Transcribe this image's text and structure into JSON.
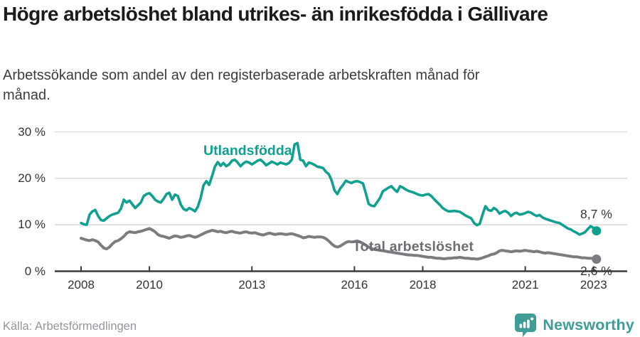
{
  "title": "Högre arbetslöshet bland utrikes- än inrikesfödda i Gällivare",
  "subtitle": "Arbetssökande som andel av den registerbaserade arbetskraften månad för månad.",
  "source": "Källa: Arbetsförmedlingen",
  "logo": {
    "text": "Newsworthy",
    "icon": "bar-chart-speech-bubble-icon",
    "color": "#3f9c96"
  },
  "colors": {
    "utlandsfodda": "#10a090",
    "total_line": "#7b7b80",
    "total_label": "#6d6d72",
    "grid": "#dcdcdc",
    "axis": "#3c3c3c",
    "text": "#333333",
    "source_text": "#95959b"
  },
  "chart_data": {
    "type": "line",
    "unit": "%",
    "frequency": "monthly",
    "x_start": "2008-01",
    "x_end": "2023-02",
    "ylim": [
      0,
      30
    ],
    "grid": "horizontal-only",
    "yticks": [
      {
        "value": 0,
        "label": "0 %"
      },
      {
        "value": 10,
        "label": "10 %"
      },
      {
        "value": 20,
        "label": "20 %"
      },
      {
        "value": 30,
        "label": "30 %"
      }
    ],
    "xticks": [
      {
        "year": 2008,
        "label": "2008"
      },
      {
        "year": 2010,
        "label": "2010"
      },
      {
        "year": 2013,
        "label": "2013"
      },
      {
        "year": 2016,
        "label": "2016"
      },
      {
        "year": 2018,
        "label": "2018"
      },
      {
        "year": 2021,
        "label": "2021"
      },
      {
        "year": 2023,
        "label": "2023"
      }
    ],
    "series": [
      {
        "name": "Utlandsfödda",
        "color": "#10a090",
        "end_label": "8,7 %",
        "end_value": 8.7,
        "values": [
          10.4,
          10.1,
          10.0,
          12.2,
          12.9,
          13.2,
          11.9,
          11.0,
          10.9,
          11.4,
          11.9,
          12.2,
          12.4,
          12.6,
          13.5,
          15.4,
          14.8,
          15.2,
          14.4,
          13.6,
          14.2,
          14.8,
          16.2,
          16.6,
          16.8,
          16.2,
          15.4,
          15.0,
          14.8,
          15.6,
          16.6,
          16.9,
          15.4,
          16.5,
          16.2,
          14.4,
          13.4,
          13.1,
          13.6,
          13.3,
          12.9,
          13.9,
          15.8,
          18.5,
          19.4,
          18.6,
          20.5,
          22.5,
          23.5,
          22.7,
          23.3,
          22.6,
          23.0,
          23.8,
          24.0,
          23.4,
          22.6,
          23.2,
          23.6,
          23.4,
          23.0,
          23.4,
          23.8,
          24.0,
          23.5,
          22.8,
          23.2,
          23.6,
          23.3,
          23.0,
          23.4,
          23.2,
          23.0,
          23.3,
          24.0,
          27.3,
          27.6,
          24.0,
          23.8,
          22.6,
          23.4,
          23.2,
          22.9,
          22.5,
          22.4,
          22.2,
          21.4,
          20.9,
          19.5,
          17.4,
          16.6,
          17.8,
          18.6,
          19.5,
          19.2,
          19.0,
          19.3,
          19.4,
          19.2,
          18.9,
          16.8,
          14.5,
          14.1,
          14.0,
          14.9,
          15.8,
          17.2,
          17.6,
          18.0,
          18.3,
          17.6,
          17.1,
          18.3,
          18.0,
          17.6,
          17.3,
          17.1,
          16.9,
          16.6,
          16.4,
          16.3,
          16.5,
          16.6,
          16.2,
          15.5,
          14.9,
          14.3,
          13.6,
          13.2,
          12.9,
          12.9,
          13.0,
          12.9,
          12.8,
          12.4,
          12.0,
          11.7,
          11.4,
          10.4,
          9.9,
          10.2,
          12.2,
          14.0,
          13.2,
          13.0,
          13.6,
          13.2,
          12.4,
          12.8,
          13.0,
          12.6,
          11.9,
          12.4,
          12.6,
          12.2,
          12.3,
          12.5,
          12.8,
          12.6,
          12.2,
          11.9,
          12.1,
          11.6,
          11.3,
          11.1,
          10.9,
          10.7,
          10.5,
          10.4,
          10.0,
          9.6,
          9.2,
          9.0,
          8.6,
          8.3,
          7.9,
          8.1,
          8.4,
          9.1,
          9.7,
          9.3,
          8.7
        ]
      },
      {
        "name": "Total arbetslöshet",
        "color": "#7b7b80",
        "end_label": "2,6 %",
        "end_value": 2.6,
        "values": [
          7.1,
          6.9,
          6.7,
          6.6,
          6.8,
          6.6,
          6.3,
          5.6,
          5.0,
          4.8,
          5.2,
          5.9,
          6.4,
          6.6,
          7.0,
          7.5,
          8.2,
          8.5,
          8.4,
          8.3,
          8.5,
          8.6,
          8.8,
          9.0,
          9.2,
          8.9,
          8.5,
          7.9,
          7.6,
          7.5,
          7.3,
          7.1,
          7.4,
          7.6,
          7.5,
          7.3,
          7.4,
          7.6,
          7.7,
          7.5,
          7.3,
          7.5,
          7.8,
          8.1,
          8.4,
          8.6,
          8.8,
          8.7,
          8.5,
          8.6,
          8.4,
          8.3,
          8.5,
          8.6,
          8.4,
          8.3,
          8.2,
          8.4,
          8.5,
          8.3,
          8.2,
          8.3,
          8.1,
          7.9,
          7.8,
          8.0,
          8.2,
          8.1,
          7.9,
          8.0,
          8.1,
          8.0,
          7.9,
          8.0,
          8.1,
          7.9,
          7.7,
          7.5,
          7.2,
          7.3,
          7.5,
          7.4,
          7.3,
          7.4,
          7.4,
          7.3,
          7.0,
          6.5,
          5.9,
          5.4,
          5.2,
          5.4,
          5.8,
          6.2,
          6.4,
          6.3,
          6.4,
          6.5,
          6.3,
          6.0,
          5.6,
          5.2,
          4.9,
          4.7,
          4.6,
          4.5,
          4.4,
          4.3,
          4.2,
          4.1,
          4.0,
          3.9,
          3.8,
          3.7,
          3.6,
          3.5,
          3.5,
          3.4,
          3.4,
          3.3,
          3.2,
          3.1,
          3.0,
          3.0,
          2.9,
          2.8,
          2.8,
          2.7,
          2.7,
          2.8,
          2.8,
          2.9,
          2.9,
          3.0,
          2.9,
          2.8,
          2.8,
          2.7,
          2.7,
          2.6,
          2.7,
          2.9,
          3.1,
          3.3,
          3.6,
          3.7,
          4.0,
          4.4,
          4.5,
          4.4,
          4.3,
          4.2,
          4.3,
          4.4,
          4.3,
          4.4,
          4.5,
          4.4,
          4.3,
          4.2,
          4.3,
          4.2,
          4.0,
          3.9,
          4.0,
          3.9,
          3.8,
          3.7,
          3.6,
          3.5,
          3.4,
          3.3,
          3.2,
          3.1,
          3.1,
          3.0,
          2.9,
          2.9,
          2.8,
          2.8,
          2.7,
          2.6
        ]
      }
    ]
  }
}
